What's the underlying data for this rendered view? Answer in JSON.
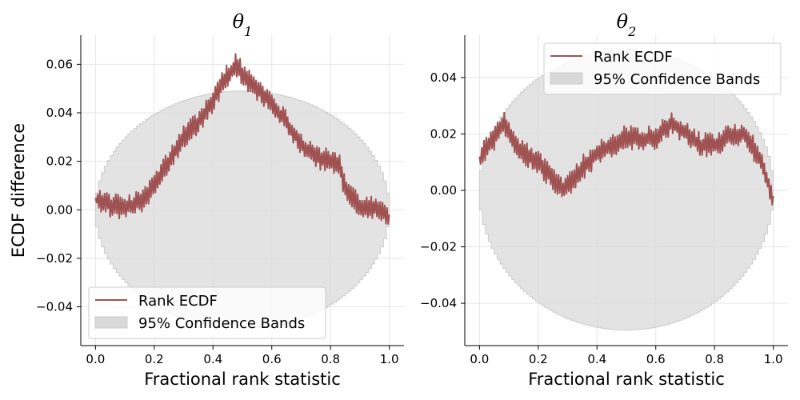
{
  "chart_data": [
    {
      "type": "line",
      "title": "θ",
      "title_subscript": "1",
      "xlabel": "Fractional rank statistic",
      "ylabel": "ECDF difference",
      "xlim": [
        -0.05,
        1.05
      ],
      "ylim": [
        -0.056,
        0.072
      ],
      "x_ticks": [
        0.0,
        0.2,
        0.4,
        0.6,
        0.8,
        1.0
      ],
      "x_tick_labels": [
        "0.0",
        "0.2",
        "0.4",
        "0.6",
        "0.8",
        "1.0"
      ],
      "y_ticks": [
        -0.04,
        -0.02,
        0.0,
        0.02,
        0.04,
        0.06
      ],
      "y_tick_labels": [
        "−0.04",
        "−0.02",
        "0.00",
        "0.02",
        "0.04",
        "0.06"
      ],
      "grid": true,
      "legend_position": "bottom-left",
      "band": {
        "name": "95% Confidence Bands",
        "half_width_max": 0.049,
        "color": "#d9d9d9"
      },
      "series": [
        {
          "name": "Rank ECDF",
          "color": "#a05252",
          "x": [
            0.0,
            0.05,
            0.1,
            0.15,
            0.2,
            0.25,
            0.3,
            0.35,
            0.4,
            0.45,
            0.48,
            0.5,
            0.55,
            0.6,
            0.65,
            0.7,
            0.75,
            0.8,
            0.83,
            0.85,
            0.9,
            0.95,
            1.0
          ],
          "y": [
            0.005,
            0.002,
            0.001,
            0.003,
            0.01,
            0.02,
            0.03,
            0.036,
            0.045,
            0.056,
            0.06,
            0.056,
            0.05,
            0.044,
            0.036,
            0.027,
            0.022,
            0.02,
            0.018,
            0.009,
            0.002,
            0.001,
            -0.002
          ],
          "noise_amplitude": 0.005
        }
      ]
    },
    {
      "type": "line",
      "title": "θ",
      "title_subscript": "2",
      "xlabel": "Fractional rank statistic",
      "ylabel": "",
      "xlim": [
        -0.05,
        1.05
      ],
      "ylim": [
        -0.055,
        0.055
      ],
      "x_ticks": [
        0.0,
        0.2,
        0.4,
        0.6,
        0.8,
        1.0
      ],
      "x_tick_labels": [
        "0.0",
        "0.2",
        "0.4",
        "0.6",
        "0.8",
        "1.0"
      ],
      "y_ticks": [
        -0.04,
        -0.02,
        0.0,
        0.02,
        0.04
      ],
      "y_tick_labels": [
        "−0.04",
        "−0.02",
        "0.00",
        "0.02",
        "0.04"
      ],
      "grid": true,
      "legend_position": "top-right",
      "band": {
        "name": "95% Confidence Bands",
        "half_width_max": 0.0495,
        "color": "#d9d9d9"
      },
      "series": [
        {
          "name": "Rank ECDF",
          "color": "#a05252",
          "x": [
            0.0,
            0.03,
            0.05,
            0.08,
            0.1,
            0.15,
            0.2,
            0.25,
            0.28,
            0.3,
            0.35,
            0.4,
            0.45,
            0.5,
            0.55,
            0.6,
            0.65,
            0.7,
            0.75,
            0.8,
            0.85,
            0.9,
            0.95,
            1.0
          ],
          "y": [
            0.012,
            0.016,
            0.018,
            0.024,
            0.02,
            0.013,
            0.01,
            0.004,
            0.0,
            0.002,
            0.008,
            0.013,
            0.016,
            0.019,
            0.018,
            0.019,
            0.024,
            0.021,
            0.016,
            0.016,
            0.019,
            0.02,
            0.012,
            -0.002
          ],
          "noise_amplitude": 0.0045
        }
      ]
    }
  ]
}
